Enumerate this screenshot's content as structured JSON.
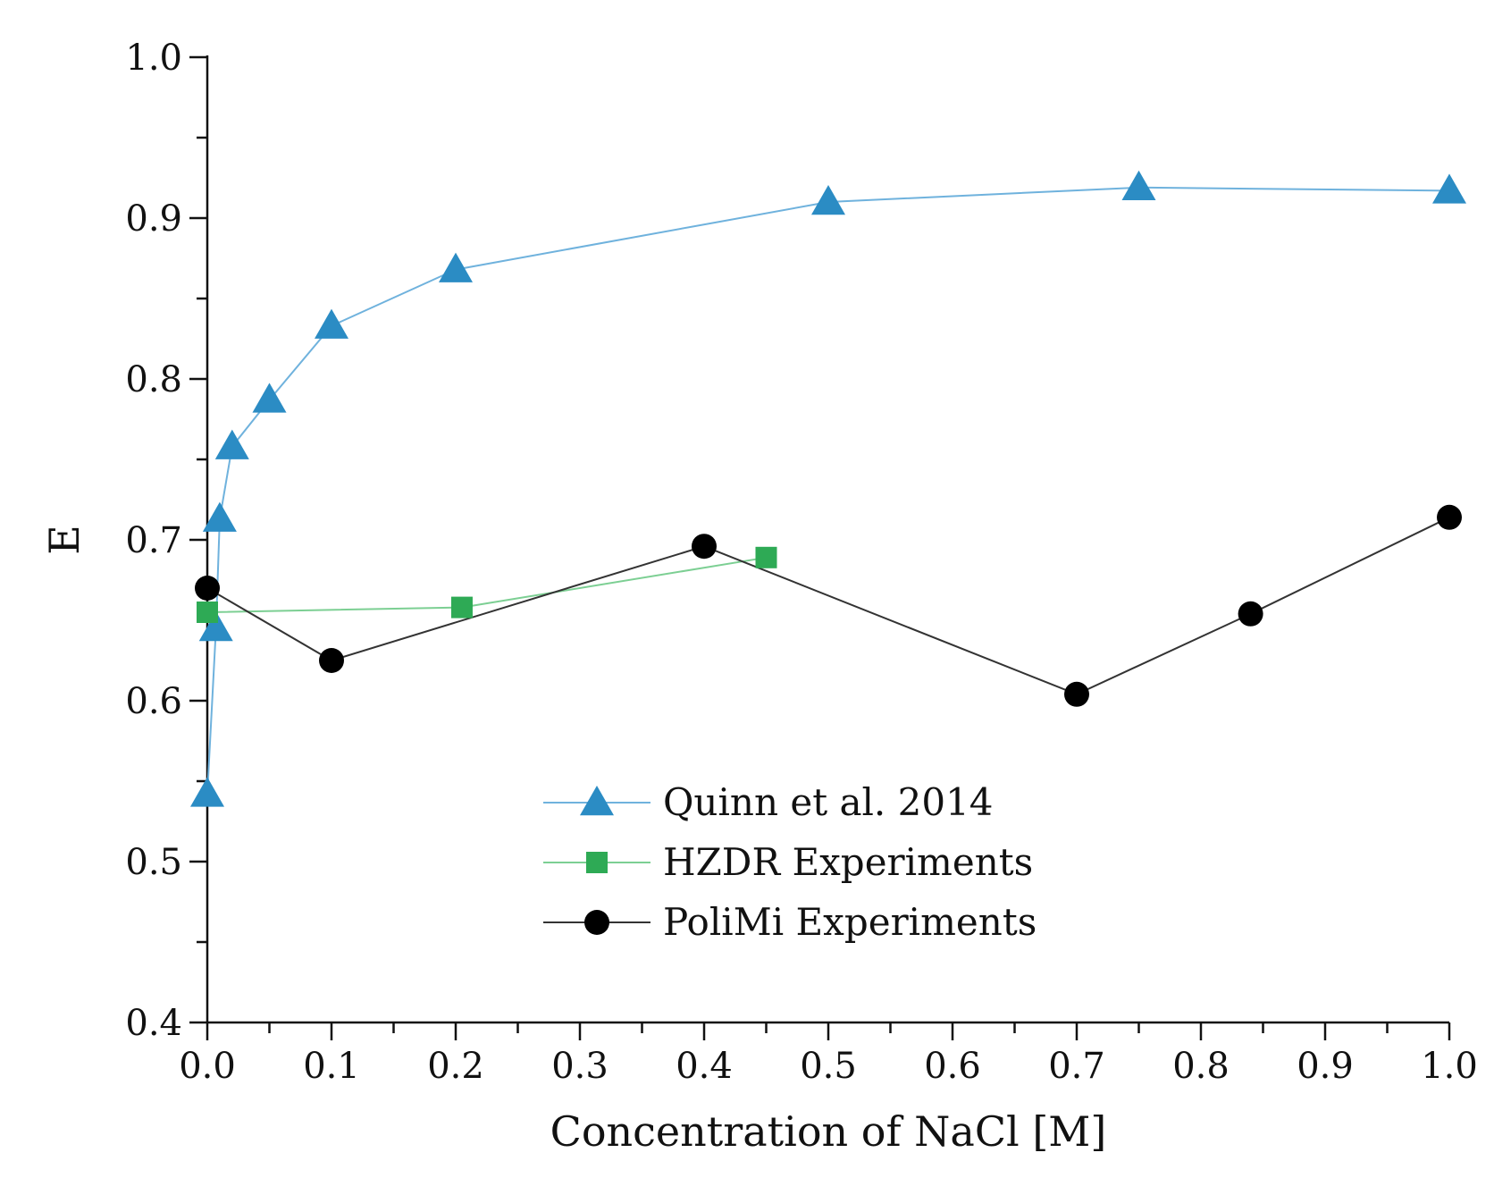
{
  "chart_data": {
    "type": "line",
    "title": "",
    "xlabel": "Concentration of NaCl [M]",
    "ylabel": "E",
    "xlim": [
      0.0,
      1.0
    ],
    "ylim": [
      0.4,
      1.0
    ],
    "x_ticks": [
      0.0,
      0.1,
      0.2,
      0.3,
      0.4,
      0.5,
      0.6,
      0.7,
      0.8,
      0.9,
      1.0
    ],
    "x_tick_labels": [
      "0.0",
      "0.1",
      "0.2",
      "0.3",
      "0.4",
      "0.5",
      "0.6",
      "0.7",
      "0.8",
      "0.9",
      "1.0"
    ],
    "y_ticks": [
      0.4,
      0.5,
      0.6,
      0.7,
      0.8,
      0.9,
      1.0
    ],
    "y_tick_labels": [
      "0.4",
      "0.5",
      "0.6",
      "0.7",
      "0.8",
      "0.9",
      "1.0"
    ],
    "grid": false,
    "legend_position": "bottom-center",
    "series": [
      {
        "name": "Quinn et al. 2014",
        "marker": "triangle",
        "color": "#2b8cc4",
        "line_color": "#6fb2dd",
        "x": [
          0.0,
          0.007,
          0.01,
          0.02,
          0.05,
          0.1,
          0.2,
          0.5,
          0.75,
          1.0
        ],
        "y": [
          0.542,
          0.645,
          0.713,
          0.758,
          0.787,
          0.833,
          0.868,
          0.91,
          0.919,
          0.917
        ]
      },
      {
        "name": "HZDR Experiments",
        "marker": "square",
        "color": "#2eaa55",
        "line_color": "#7ccf93",
        "x": [
          0.0,
          0.205,
          0.45
        ],
        "y": [
          0.655,
          0.658,
          0.689
        ]
      },
      {
        "name": "PoliMi Experiments",
        "marker": "circle",
        "color": "#000000",
        "line_color": "#333333",
        "x": [
          0.0,
          0.1,
          0.4,
          0.7,
          0.84,
          1.0
        ],
        "y": [
          0.67,
          0.625,
          0.696,
          0.604,
          0.654,
          0.714
        ]
      }
    ]
  }
}
